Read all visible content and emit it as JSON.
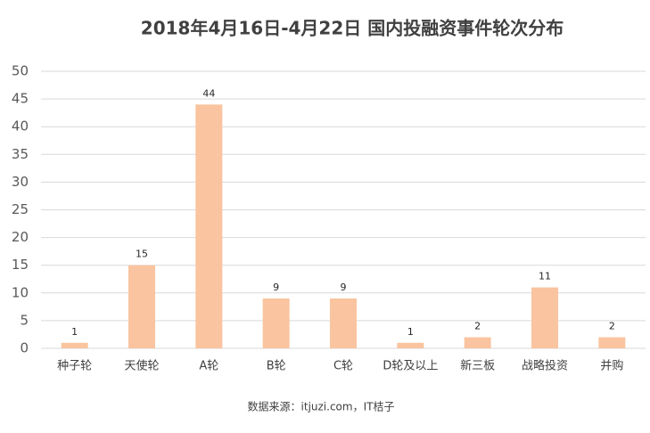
{
  "chart_data": {
    "type": "bar",
    "title": "2018年4月16日-4月22日  国内投融资事件轮次分布",
    "categories": [
      "种子轮",
      "天使轮",
      "A轮",
      "B轮",
      "C轮",
      "D轮及以上",
      "新三板",
      "战略投资",
      "并购"
    ],
    "values": [
      1,
      15,
      44,
      9,
      9,
      1,
      2,
      11,
      2
    ],
    "color": "#f9c49f",
    "ylim": [
      0,
      50
    ],
    "yticks": [
      0,
      5,
      10,
      15,
      20,
      25,
      30,
      35,
      40,
      45,
      50
    ],
    "grid": true,
    "source": "数据来源：itjuzi.com，IT桔子"
  }
}
